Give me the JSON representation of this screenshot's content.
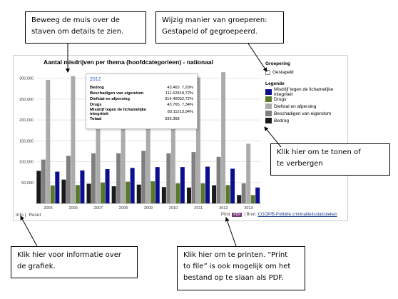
{
  "callouts": {
    "top_left": [
      "Beweeg de muis over de",
      "staven om details te zien."
    ],
    "top_right": [
      "Wijzig manier van groeperen:",
      "Gestapeld of gegroepeerd."
    ],
    "right": [
      "Klik hier om te tonen  of",
      "te verbergen"
    ],
    "bottom_left": [
      "Klik hier voor informatie over",
      "de grafiek."
    ],
    "bottom_right": [
      "Klik hier om te printen.  “Print",
      "to file” is ook mogelijk om het",
      "bestand op te slaan als PDF."
    ]
  },
  "legend": {
    "grouping_header": "Groepering",
    "stacked_label": "Gestapeld",
    "legend_header": "Legende"
  },
  "footer": {
    "info": "Info",
    "reset": "Reset",
    "print": "Print",
    "pdf": "PDF",
    "source_prefix": "| Bron:",
    "source_link": "CGOP/B-Politiële criminaliteitsstatistieken"
  },
  "tooltip": {
    "year": "2012",
    "rows": [
      {
        "label": "Bedrog",
        "value": "43.463",
        "pct": "7,29%"
      },
      {
        "label": "Beschadigen van eigendom",
        "value": "111.628",
        "pct": "18,72%"
      },
      {
        "label": "Diefstal en afpersing",
        "value": "314.400",
        "pct": "52,72%"
      },
      {
        "label": "Drugs",
        "value": "43.765",
        "pct": "7,34%"
      },
      {
        "label": "Misdrijf tegen de lichamelijke integriteit",
        "value": "83.112",
        "pct": "13,94%"
      },
      {
        "label": "Totaal",
        "value": "596.368",
        "pct": ""
      }
    ]
  },
  "chart_data": {
    "type": "bar",
    "title": "Aantal misdrijven per thema (hoofdcategorieen) - nationaal",
    "categories": [
      "2005",
      "2006",
      "2007",
      "2008",
      "2009",
      "2010",
      "2011",
      "2012",
      "2013"
    ],
    "ylim": [
      0,
      325000
    ],
    "yticks": [
      50000,
      100000,
      150000,
      200000,
      250000,
      300000
    ],
    "ytick_labels": [
      "50,000",
      "100,000",
      "150,000",
      "200,000",
      "250,000",
      "300,000"
    ],
    "grid": true,
    "legend_position": "right",
    "series": [
      {
        "name": "Bedrog",
        "color": "#1a1a1a",
        "values": [
          78000,
          57000,
          47000,
          41000,
          45000,
          39000,
          38000,
          43463,
          20000
        ]
      },
      {
        "name": "Beschadigen van eigendom",
        "color": "#7f7f7f",
        "values": [
          105000,
          114000,
          120000,
          120000,
          126000,
          120000,
          123000,
          111628,
          48000
        ]
      },
      {
        "name": "Diefstal en afpersing",
        "color": "#ababab",
        "values": [
          296000,
          305000,
          300000,
          305000,
          303000,
          300000,
          302000,
          314400,
          143000
        ]
      },
      {
        "name": "Drugs",
        "color": "#5a7a2a",
        "values": [
          43000,
          44000,
          50000,
          52000,
          53000,
          48000,
          48000,
          43765,
          20000
        ]
      },
      {
        "name": "Misdrijf tegen de lichamelijke integriteit",
        "color": "#0d0d8f",
        "values": [
          76000,
          79000,
          82000,
          85000,
          87000,
          87000,
          88000,
          83112,
          38000
        ]
      }
    ]
  }
}
